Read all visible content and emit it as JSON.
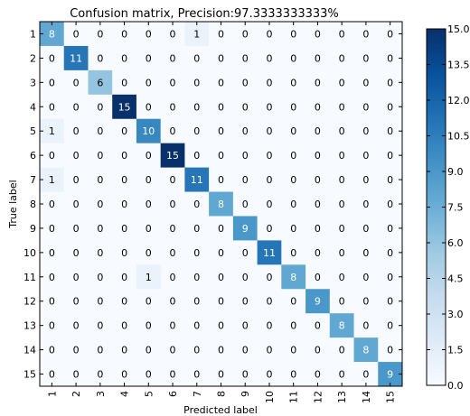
{
  "chart_data": {
    "type": "heatmap",
    "title": "Confusion matrix, Precision:97.3333333333%",
    "xlabel": "Predicted label",
    "ylabel": "True label",
    "x_tick_labels": [
      "1",
      "2",
      "3",
      "4",
      "5",
      "6",
      "7",
      "8",
      "9",
      "10",
      "11",
      "12",
      "13",
      "14",
      "15"
    ],
    "y_tick_labels": [
      "1",
      "2",
      "3",
      "4",
      "5",
      "6",
      "7",
      "8",
      "9",
      "10",
      "11",
      "12",
      "13",
      "14",
      "15"
    ],
    "matrix": [
      [
        8,
        0,
        0,
        0,
        0,
        0,
        1,
        0,
        0,
        0,
        0,
        0,
        0,
        0,
        0
      ],
      [
        0,
        11,
        0,
        0,
        0,
        0,
        0,
        0,
        0,
        0,
        0,
        0,
        0,
        0,
        0
      ],
      [
        0,
        0,
        6,
        0,
        0,
        0,
        0,
        0,
        0,
        0,
        0,
        0,
        0,
        0,
        0
      ],
      [
        0,
        0,
        0,
        15,
        0,
        0,
        0,
        0,
        0,
        0,
        0,
        0,
        0,
        0,
        0
      ],
      [
        1,
        0,
        0,
        0,
        10,
        0,
        0,
        0,
        0,
        0,
        0,
        0,
        0,
        0,
        0
      ],
      [
        0,
        0,
        0,
        0,
        0,
        15,
        0,
        0,
        0,
        0,
        0,
        0,
        0,
        0,
        0
      ],
      [
        1,
        0,
        0,
        0,
        0,
        0,
        11,
        0,
        0,
        0,
        0,
        0,
        0,
        0,
        0
      ],
      [
        0,
        0,
        0,
        0,
        0,
        0,
        0,
        8,
        0,
        0,
        0,
        0,
        0,
        0,
        0
      ],
      [
        0,
        0,
        0,
        0,
        0,
        0,
        0,
        0,
        9,
        0,
        0,
        0,
        0,
        0,
        0
      ],
      [
        0,
        0,
        0,
        0,
        0,
        0,
        0,
        0,
        0,
        11,
        0,
        0,
        0,
        0,
        0
      ],
      [
        0,
        0,
        0,
        0,
        1,
        0,
        0,
        0,
        0,
        0,
        8,
        0,
        0,
        0,
        0
      ],
      [
        0,
        0,
        0,
        0,
        0,
        0,
        0,
        0,
        0,
        0,
        0,
        9,
        0,
        0,
        0
      ],
      [
        0,
        0,
        0,
        0,
        0,
        0,
        0,
        0,
        0,
        0,
        0,
        0,
        8,
        0,
        0
      ],
      [
        0,
        0,
        0,
        0,
        0,
        0,
        0,
        0,
        0,
        0,
        0,
        0,
        0,
        8,
        0
      ],
      [
        0,
        0,
        0,
        0,
        0,
        0,
        0,
        0,
        0,
        0,
        0,
        0,
        0,
        0,
        9
      ]
    ],
    "colorbar": {
      "min": 0.0,
      "max": 15.0,
      "tick_labels": [
        "15.0",
        "13.5",
        "12.0",
        "10.5",
        "9.0",
        "7.5",
        "6.0",
        "4.5",
        "3.0",
        "1.5",
        "0.0"
      ],
      "colormap": "Blues"
    }
  }
}
